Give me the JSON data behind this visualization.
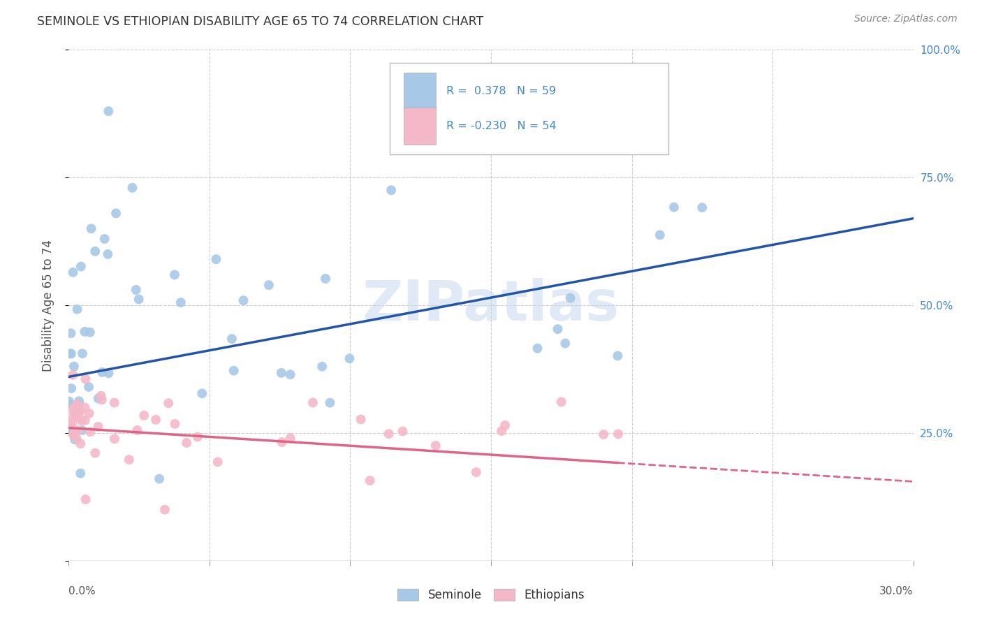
{
  "title": "SEMINOLE VS ETHIOPIAN DISABILITY AGE 65 TO 74 CORRELATION CHART",
  "source": "Source: ZipAtlas.com",
  "ylabel": "Disability Age 65 to 74",
  "seminole_R": "0.378",
  "seminole_N": "59",
  "ethiopians_R": "-0.230",
  "ethiopians_N": "54",
  "seminole_color": "#A8C8E8",
  "ethiopians_color": "#F4B8C8",
  "seminole_line_color": "#2255AA",
  "ethiopians_line_color": "#DD6688",
  "background_color": "#FFFFFF",
  "grid_color": "#CCCCCC",
  "right_axis_color": "#4488CC",
  "watermark": "ZIPatlas",
  "watermark_color": "#C8D8F0",
  "legend_text_color": "#4488CC",
  "title_color": "#333333",
  "source_color": "#888888",
  "ylabel_color": "#555555",
  "xlabel_color": "#555555",
  "x_ticks_bottom_left": "0.0%",
  "x_ticks_bottom_right": "30.0%",
  "y_ticks_right": [
    "25.0%",
    "50.0%",
    "75.0%",
    "100.0%"
  ],
  "legend_label_1": "R =  0.378   N = 59",
  "legend_label_2": "R = -0.230   N = 54",
  "bottom_legend_seminole": "Seminole",
  "bottom_legend_ethiopians": "Ethiopians",
  "seminole_seed": 42,
  "ethiopians_seed": 77
}
